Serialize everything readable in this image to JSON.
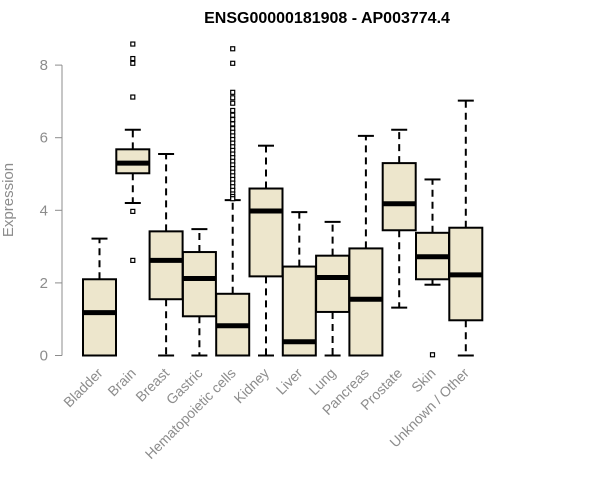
{
  "chart_data": {
    "type": "boxplot",
    "title": "ENSG00000181908 - AP003774.4",
    "ylabel": "Expression",
    "xlabel": "",
    "ylim": [
      0,
      8.6
    ],
    "yticks": [
      0,
      2,
      4,
      6,
      8
    ],
    "box_fill": "#ede6cc",
    "axis_color": "#8c8c8c",
    "categories": [
      "Bladder",
      "Brain",
      "Breast",
      "Gastric",
      "Hematopoietic cells",
      "Kidney",
      "Liver",
      "Lung",
      "Pancreas",
      "Prostate",
      "Skin",
      "Unknown / Other"
    ],
    "boxes": [
      {
        "min": 0,
        "q1": 0,
        "median": 1.18,
        "q3": 2.1,
        "max": 3.22,
        "outliers": []
      },
      {
        "min": 4.2,
        "q1": 5.02,
        "median": 5.3,
        "q3": 5.68,
        "max": 6.22,
        "outliers": [
          8.58,
          8.18,
          8.05,
          7.12,
          3.97,
          2.62
        ]
      },
      {
        "min": 0,
        "q1": 1.55,
        "median": 2.62,
        "q3": 3.42,
        "max": 5.55,
        "outliers": []
      },
      {
        "min": 0,
        "q1": 1.08,
        "median": 2.12,
        "q3": 2.85,
        "max": 3.48,
        "outliers": []
      },
      {
        "min": 0,
        "q1": 0,
        "median": 0.82,
        "q3": 1.7,
        "max": 4.28,
        "outliers": [
          8.45,
          8.05,
          7.25,
          7.1,
          6.95,
          6.75,
          6.62,
          6.5,
          6.38,
          6.25,
          6.15,
          6.05,
          5.95,
          5.85,
          5.75,
          5.65,
          5.55,
          5.45,
          5.35,
          5.25,
          5.15,
          5.05,
          4.95,
          4.85,
          4.75,
          4.65,
          4.55,
          4.45,
          4.38,
          4.32
        ]
      },
      {
        "min": 0,
        "q1": 2.18,
        "median": 3.98,
        "q3": 4.6,
        "max": 5.78,
        "outliers": []
      },
      {
        "min": 0,
        "q1": 0,
        "median": 0.38,
        "q3": 2.45,
        "max": 3.95,
        "outliers": []
      },
      {
        "min": 0,
        "q1": 1.2,
        "median": 2.15,
        "q3": 2.75,
        "max": 3.68,
        "outliers": []
      },
      {
        "min": 0,
        "q1": 0,
        "median": 1.55,
        "q3": 2.95,
        "max": 6.05,
        "outliers": []
      },
      {
        "min": 1.32,
        "q1": 3.45,
        "median": 4.18,
        "q3": 5.3,
        "max": 6.22,
        "outliers": []
      },
      {
        "min": 1.95,
        "q1": 2.1,
        "median": 2.72,
        "q3": 3.38,
        "max": 4.85,
        "outliers": [
          0.02
        ]
      },
      {
        "min": 0,
        "q1": 0.97,
        "median": 2.22,
        "q3": 3.52,
        "max": 7.02,
        "outliers": []
      }
    ]
  }
}
